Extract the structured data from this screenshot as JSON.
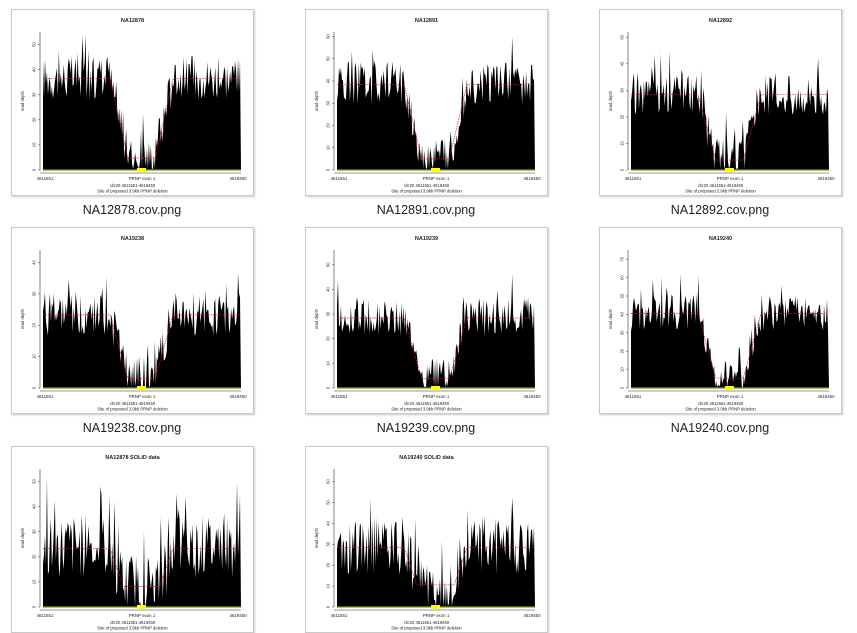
{
  "files": [
    {
      "filename": "NA12878.cov.png",
      "title": "NA12878",
      "yticks": [
        "0",
        "10",
        "20",
        "30",
        "40",
        "50"
      ],
      "ymax": 55,
      "baseline": 36,
      "dip": 0,
      "noise": 9
    },
    {
      "filename": "NA12891.cov.png",
      "title": "NA12891",
      "yticks": [
        "0",
        "10",
        "20",
        "30",
        "40",
        "50",
        "60"
      ],
      "ymax": 62,
      "baseline": 38,
      "dip": 0,
      "noise": 10
    },
    {
      "filename": "NA12892.cov.png",
      "title": "NA12892",
      "yticks": [
        "0",
        "10",
        "20",
        "30",
        "40",
        "50"
      ],
      "ymax": 52,
      "baseline": 28,
      "dip": 0,
      "noise": 8
    },
    {
      "filename": "NA19238.cov.png",
      "title": "NA19238",
      "yticks": [
        "0",
        "10",
        "20",
        "30",
        "40"
      ],
      "ymax": 44,
      "baseline": 23,
      "dip": 0,
      "noise": 7
    },
    {
      "filename": "NA19239.cov.png",
      "title": "NA19239",
      "yticks": [
        "0",
        "10",
        "20",
        "30",
        "40",
        "50"
      ],
      "ymax": 56,
      "baseline": 28,
      "dip": 0,
      "noise": 8
    },
    {
      "filename": "NA19240.cov.png",
      "title": "NA19240",
      "yticks": [
        "0",
        "10",
        "20",
        "30",
        "40",
        "50",
        "60",
        "70"
      ],
      "ymax": 75,
      "baseline": 40,
      "dip": 0.25,
      "noise": 10
    },
    {
      "filename": "",
      "title": "NA12878 SOLiD data",
      "yticks": [
        "0",
        "10",
        "20",
        "30",
        "40",
        "50"
      ],
      "ymax": 55,
      "baseline": 23,
      "dip": 0.75,
      "noise": 13
    },
    {
      "filename": "",
      "title": "NA19240 SOLiD data",
      "yticks": [
        "0",
        "10",
        "20",
        "30",
        "40",
        "50",
        "60"
      ],
      "ymax": 66,
      "baseline": 28,
      "dip": 0.8,
      "noise": 14
    }
  ],
  "plot": {
    "ylabel": "read depth",
    "xstart": "4611551",
    "xend": "4619450",
    "xmid": "PRNP exon 1",
    "caption1": "chr20 4611551-4619450",
    "caption2": "Site of proposed 3.9kb PRNP deletion"
  },
  "colors": {
    "bars": "#000000",
    "smooth": "#e01010",
    "exon": "#ffff00",
    "track": "#8a9a00"
  }
}
